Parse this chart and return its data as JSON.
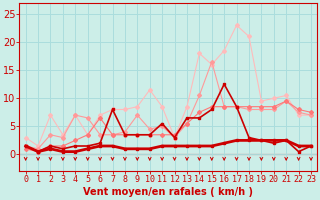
{
  "x": [
    0,
    1,
    2,
    3,
    4,
    5,
    6,
    7,
    8,
    9,
    10,
    11,
    12,
    13,
    14,
    15,
    16,
    17,
    18,
    19,
    20,
    21,
    22,
    23
  ],
  "series": [
    {
      "name": "rafales_lightest",
      "color": "#ffbbbb",
      "lw": 0.8,
      "marker": "D",
      "markersize": 2,
      "y": [
        3.0,
        1.5,
        7.0,
        3.5,
        7.0,
        3.5,
        7.0,
        8.0,
        8.0,
        8.5,
        11.5,
        8.5,
        3.0,
        8.5,
        18.0,
        16.0,
        18.5,
        23.0,
        21.0,
        9.5,
        10.0,
        10.5,
        7.0,
        7.0
      ]
    },
    {
      "name": "rafales_light2",
      "color": "#ff9999",
      "lw": 0.8,
      "marker": "D",
      "markersize": 2,
      "y": [
        1.5,
        1.0,
        3.5,
        3.0,
        7.0,
        6.5,
        3.5,
        3.5,
        4.0,
        7.0,
        4.5,
        5.0,
        3.0,
        5.5,
        10.5,
        16.5,
        8.5,
        8.5,
        8.0,
        8.0,
        8.0,
        9.5,
        7.5,
        7.0
      ]
    },
    {
      "name": "vent_medium1",
      "color": "#ff7777",
      "lw": 0.8,
      "marker": "D",
      "markersize": 2,
      "y": [
        1.0,
        0.5,
        1.5,
        1.5,
        2.5,
        3.5,
        6.5,
        3.5,
        3.5,
        3.5,
        3.5,
        3.5,
        3.5,
        5.5,
        7.5,
        8.5,
        8.5,
        8.5,
        8.5,
        8.5,
        8.5,
        9.5,
        8.0,
        7.5
      ]
    },
    {
      "name": "vent_dark1",
      "color": "#cc0000",
      "lw": 1.2,
      "marker": "s",
      "markersize": 2,
      "y": [
        1.5,
        0.5,
        1.5,
        1.0,
        1.5,
        1.5,
        2.0,
        8.0,
        3.5,
        3.5,
        3.5,
        5.5,
        3.0,
        6.5,
        6.5,
        8.0,
        12.5,
        8.5,
        3.0,
        2.5,
        2.0,
        2.5,
        0.5,
        1.5
      ]
    },
    {
      "name": "vent_base",
      "color": "#cc0000",
      "lw": 2.0,
      "marker": "s",
      "markersize": 2,
      "y": [
        1.5,
        0.5,
        1.0,
        0.5,
        0.5,
        1.0,
        1.5,
        1.5,
        1.0,
        1.0,
        1.0,
        1.5,
        1.5,
        1.5,
        1.5,
        1.5,
        2.0,
        2.5,
        2.5,
        2.5,
        2.5,
        2.5,
        1.5,
        1.5
      ]
    }
  ],
  "xlabel": "Vent moyen/en rafales ( km/h )",
  "ylim": [
    -3,
    27
  ],
  "yticks": [
    0,
    5,
    10,
    15,
    20,
    25
  ],
  "background_color": "#cceee8",
  "grid_color": "#aadddd",
  "text_color": "#cc0000",
  "xlabel_fontsize": 7,
  "tick_fontsize": 6
}
